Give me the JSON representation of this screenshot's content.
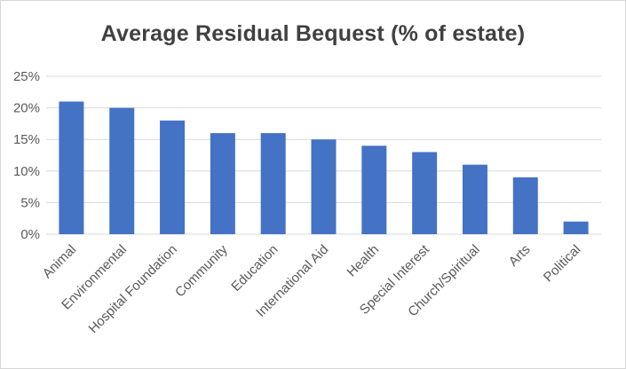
{
  "chart_data": {
    "type": "bar",
    "title": "Average Residual Bequest (% of estate)",
    "xlabel": "",
    "ylabel": "",
    "categories": [
      "Animal",
      "Environmental",
      "Hospital Foundation",
      "Community",
      "Education",
      "International Aid",
      "Health",
      "Special Interest",
      "Church/Spiritual",
      "Arts",
      "Political"
    ],
    "values": [
      21,
      20,
      18,
      16,
      16,
      15,
      14,
      13,
      11,
      9,
      2
    ],
    "ylim": [
      0,
      25
    ],
    "yticks": [
      0,
      5,
      10,
      15,
      20,
      25
    ],
    "ytick_labels": [
      "0%",
      "5%",
      "10%",
      "15%",
      "20%",
      "25%"
    ],
    "grid": true,
    "legend": "none",
    "bar_color": "#4472C4"
  }
}
